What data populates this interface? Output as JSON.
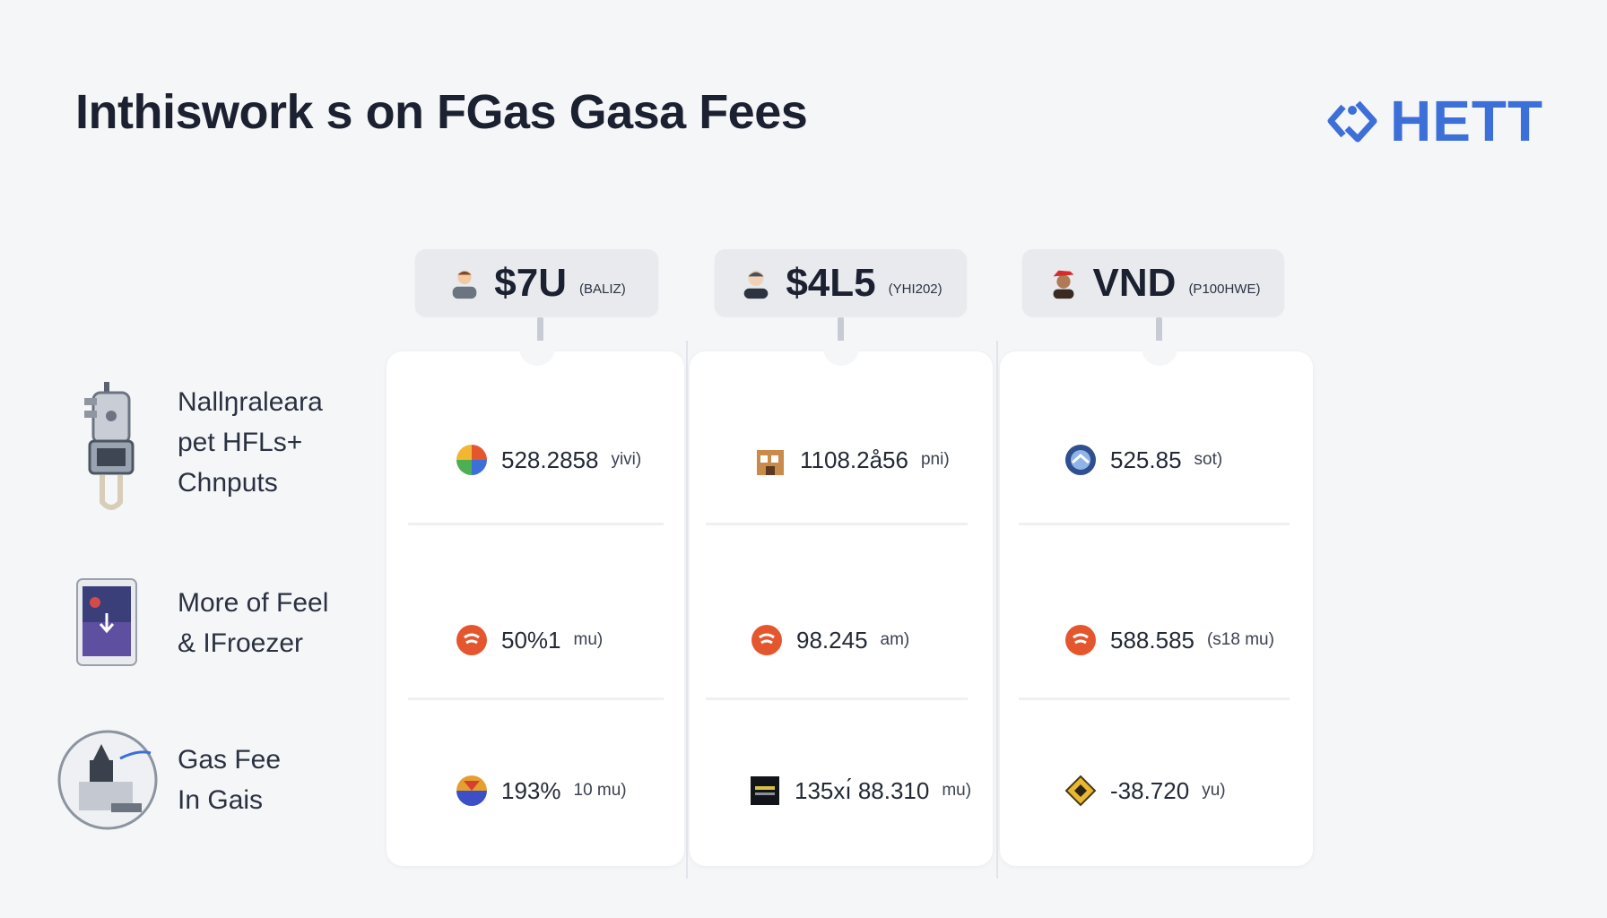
{
  "header": {
    "title": "Inthiswork s on FGas Gasa Fees",
    "logo_text": "HETT"
  },
  "columns": [
    {
      "amount": "$7U",
      "unit": "(BALIZ)",
      "avatar": "person-avatar-icon"
    },
    {
      "amount": "$4L5",
      "unit": "(YHI202)",
      "avatar": "person-avatar-icon"
    },
    {
      "amount": "VND",
      "unit": "(P100HWE)",
      "avatar": "person-avatar-icon"
    }
  ],
  "rows": [
    {
      "label_lines": [
        "Nallŋraleara",
        "pet HFLs+",
        "Chnputs"
      ],
      "icon": "gas-pump-icon",
      "cells": [
        {
          "value": "528.2858",
          "unit": "yivi)",
          "icon": "pie-chart-icon"
        },
        {
          "value": "1108.2å56",
          "unit": "pni)",
          "icon": "building-icon"
        },
        {
          "value": "525.85",
          "unit": "sot)",
          "icon": "globe-badge-icon"
        }
      ]
    },
    {
      "label_lines": [
        "More of Feel",
        "& IFroezer"
      ],
      "icon": "tablet-icon",
      "cells": [
        {
          "value": "50%1",
          "unit": "mu)",
          "icon": "orange-coin-icon"
        },
        {
          "value": "98.245",
          "unit": "am)",
          "icon": "orange-coin-icon"
        },
        {
          "value": "588.585",
          "unit": "(s18 mu)",
          "icon": "orange-coin-icon"
        }
      ]
    },
    {
      "label_lines": [
        "Gas Fee",
        "In Gais"
      ],
      "icon": "gas-station-circle-icon",
      "cells": [
        {
          "value": "193%",
          "unit": "10 mu)",
          "icon": "multicolor-coin-icon"
        },
        {
          "value": "135xı́ 88.310",
          "unit": "mu)",
          "icon": "dark-square-icon"
        },
        {
          "value": "-38.720",
          "unit": "yu)",
          "icon": "diamond-icon"
        }
      ]
    }
  ],
  "colors": {
    "accent": "#3c6fd8",
    "coin_orange": "#e4572e",
    "background": "#f5f6f8"
  }
}
